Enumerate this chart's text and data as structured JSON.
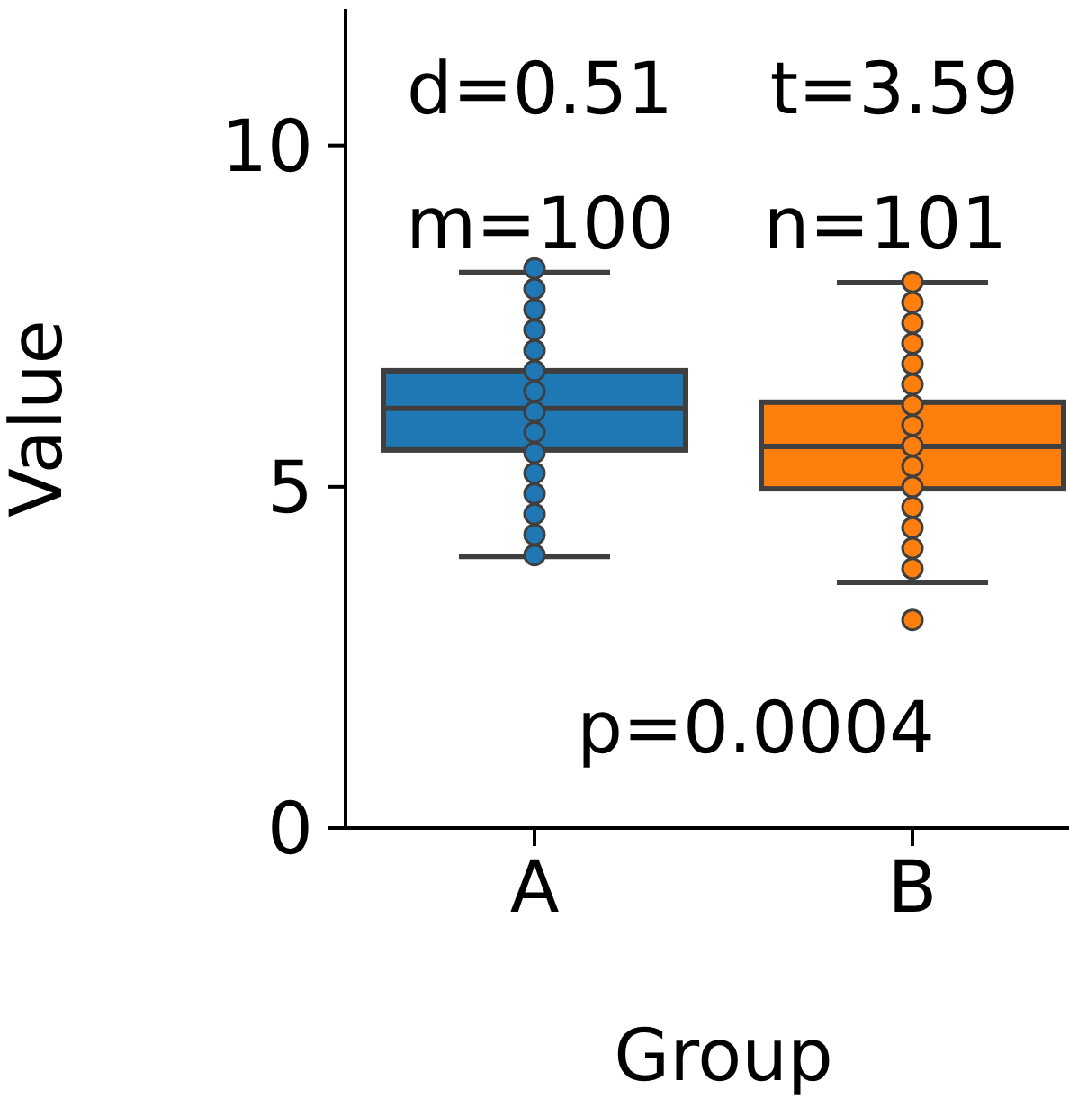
{
  "chart_data": {
    "type": "box",
    "xlabel": "Group",
    "ylabel": "Value",
    "categories": [
      "A",
      "B"
    ],
    "colors": [
      "#1f77b4",
      "#ff7f0e"
    ],
    "boxes": [
      {
        "low": 3.98,
        "q1": 5.54,
        "median": 6.15,
        "q3": 6.7,
        "high": 8.14
      },
      {
        "low": 3.6,
        "q1": 4.97,
        "median": 5.59,
        "q3": 6.24,
        "high": 7.99,
        "outliers": [
          3.05
        ]
      }
    ],
    "series": [
      {
        "type": "scatter",
        "color": "#1f77b4",
        "x": [
          "A",
          "A",
          "A",
          "A",
          "A",
          "A",
          "A",
          "A",
          "A",
          "A",
          "A",
          "A",
          "A",
          "A",
          "A"
        ],
        "values": [
          8.2,
          7.9,
          7.6,
          7.3,
          7.0,
          6.7,
          6.4,
          6.1,
          5.8,
          5.5,
          5.2,
          4.9,
          4.6,
          4.3,
          4.0
        ]
      },
      {
        "type": "scatter",
        "color": "#ff7f0e",
        "x": [
          "B",
          "B",
          "B",
          "B",
          "B",
          "B",
          "B",
          "B",
          "B",
          "B",
          "B",
          "B",
          "B",
          "B",
          "B"
        ],
        "values": [
          8.0,
          7.7,
          7.4,
          7.1,
          6.8,
          6.5,
          6.2,
          5.9,
          5.6,
          5.3,
          5.0,
          4.7,
          4.4,
          4.1,
          3.8
        ]
      }
    ],
    "ylim": [
      0,
      12
    ],
    "yticks": [
      0,
      5,
      10
    ],
    "marker": "circle",
    "annotations": [
      "d=0.51",
      "t=3.59",
      "m=100",
      "n=101",
      "p=0.0004"
    ]
  }
}
